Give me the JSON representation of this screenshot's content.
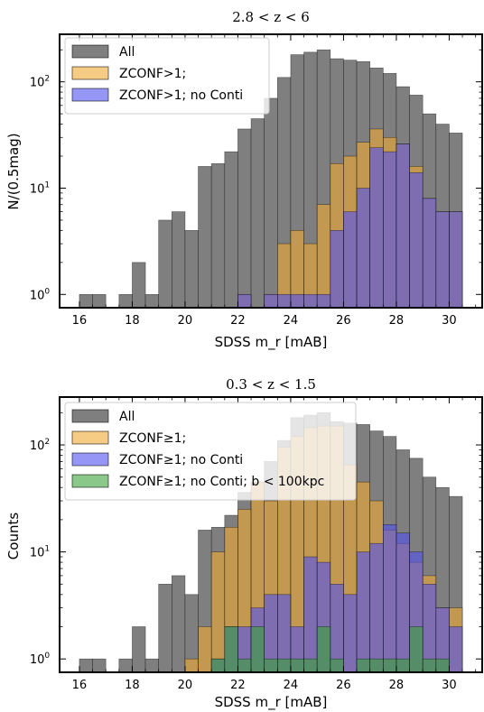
{
  "chart_data": [
    {
      "type": "bar",
      "title": "2.8 < z < 6",
      "xlabel": "SDSS m_r [mAB]",
      "ylabel": "N/(0.5mag)",
      "yscale": "log",
      "xlim": [
        15.25,
        31.25
      ],
      "ylim": [
        0.75,
        280
      ],
      "xticks": [
        "16",
        "18",
        "20",
        "22",
        "24",
        "26",
        "28",
        "30"
      ],
      "yticks": [
        "10^0",
        "10^1",
        "10^2"
      ],
      "legend_position": "upper-left",
      "bin_width": 0.5,
      "bin_starts": [
        16,
        16.5,
        17,
        17.5,
        18,
        18.5,
        19,
        19.5,
        20,
        20.5,
        21,
        21.5,
        22,
        22.5,
        23,
        23.5,
        24,
        24.5,
        25,
        25.5,
        26,
        26.5,
        27,
        27.5,
        28,
        28.5,
        29,
        29.5,
        30
      ],
      "series": [
        {
          "name": "All",
          "color": "#7f7f7f",
          "opacity": 1,
          "values": [
            1,
            1,
            0,
            1,
            2,
            1,
            5,
            6,
            4,
            16,
            17,
            22,
            36,
            45,
            70,
            110,
            180,
            190,
            200,
            165,
            160,
            155,
            135,
            120,
            90,
            75,
            50,
            40,
            33
          ]
        },
        {
          "name": "ZCONF>1;",
          "color": "#f0a830",
          "opacity": 0.6,
          "values": [
            0,
            0,
            0,
            0,
            0,
            0,
            0,
            0,
            0,
            0,
            0,
            0,
            1,
            0,
            1,
            3,
            4,
            3,
            7,
            17,
            20,
            27,
            36,
            30,
            26,
            16,
            8,
            6,
            6
          ]
        },
        {
          "name": "ZCONF>1; no Conti",
          "color": "#5050f0",
          "opacity": 0.6,
          "values": [
            0,
            0,
            0,
            0,
            0,
            0,
            0,
            0,
            0,
            0,
            0,
            0,
            1,
            0,
            1,
            1,
            1,
            1,
            1,
            4,
            6,
            10,
            24,
            22,
            26,
            14,
            8,
            6,
            6
          ]
        }
      ],
      "legend": [
        "All",
        "ZCONF>1;",
        "ZCONF>1; no Conti"
      ]
    },
    {
      "type": "bar",
      "title": "0.3 < z < 1.5",
      "xlabel": "SDSS m_r [mAB]",
      "ylabel": "Counts",
      "yscale": "log",
      "xlim": [
        15.25,
        31.25
      ],
      "ylim": [
        0.75,
        280
      ],
      "xticks": [
        "16",
        "18",
        "20",
        "22",
        "24",
        "26",
        "28",
        "30"
      ],
      "yticks": [
        "10^0",
        "10^1",
        "10^2"
      ],
      "legend_position": "upper-left",
      "bin_width": 0.5,
      "bin_starts": [
        16,
        16.5,
        17,
        17.5,
        18,
        18.5,
        19,
        19.5,
        20,
        20.5,
        21,
        21.5,
        22,
        22.5,
        23,
        23.5,
        24,
        24.5,
        25,
        25.5,
        26,
        26.5,
        27,
        27.5,
        28,
        28.5,
        29,
        29.5,
        30
      ],
      "series": [
        {
          "name": "All",
          "color": "#7f7f7f",
          "opacity": 1,
          "values": [
            1,
            1,
            0,
            1,
            2,
            1,
            5,
            6,
            4,
            16,
            17,
            22,
            36,
            45,
            70,
            110,
            180,
            190,
            200,
            165,
            160,
            155,
            135,
            120,
            90,
            75,
            50,
            40,
            33
          ]
        },
        {
          "name": "ZCONF≥1;",
          "color": "#f0a830",
          "opacity": 0.6,
          "values": [
            0,
            0,
            0,
            0,
            0,
            0,
            0,
            0,
            1,
            2,
            10,
            17,
            25,
            45,
            30,
            95,
            120,
            145,
            150,
            150,
            65,
            45,
            30,
            16,
            12,
            8,
            6,
            3,
            3
          ]
        },
        {
          "name": "ZCONF≥1; no Conti",
          "color": "#5050f0",
          "opacity": 0.6,
          "values": [
            0,
            0,
            0,
            0,
            0,
            0,
            0,
            0,
            0,
            0,
            1,
            2,
            2,
            3,
            4,
            4,
            2,
            9,
            8,
            5,
            4,
            10,
            12,
            18,
            15,
            10,
            5,
            3,
            2
          ]
        },
        {
          "name": "ZCONF≥1; no Conti; b < 100kpc",
          "color": "#3aa33a",
          "opacity": 0.6,
          "values": [
            0,
            0,
            0,
            0,
            0,
            0,
            0,
            0,
            0,
            0,
            1,
            2,
            1,
            2,
            1,
            1,
            1,
            1,
            2,
            1,
            0,
            1,
            1,
            1,
            1,
            2,
            1,
            1,
            0
          ]
        }
      ],
      "legend": [
        "All",
        "ZCONF≥1;",
        "ZCONF≥1; no Conti",
        "ZCONF≥1; no Conti; b < 100kpc"
      ]
    }
  ]
}
